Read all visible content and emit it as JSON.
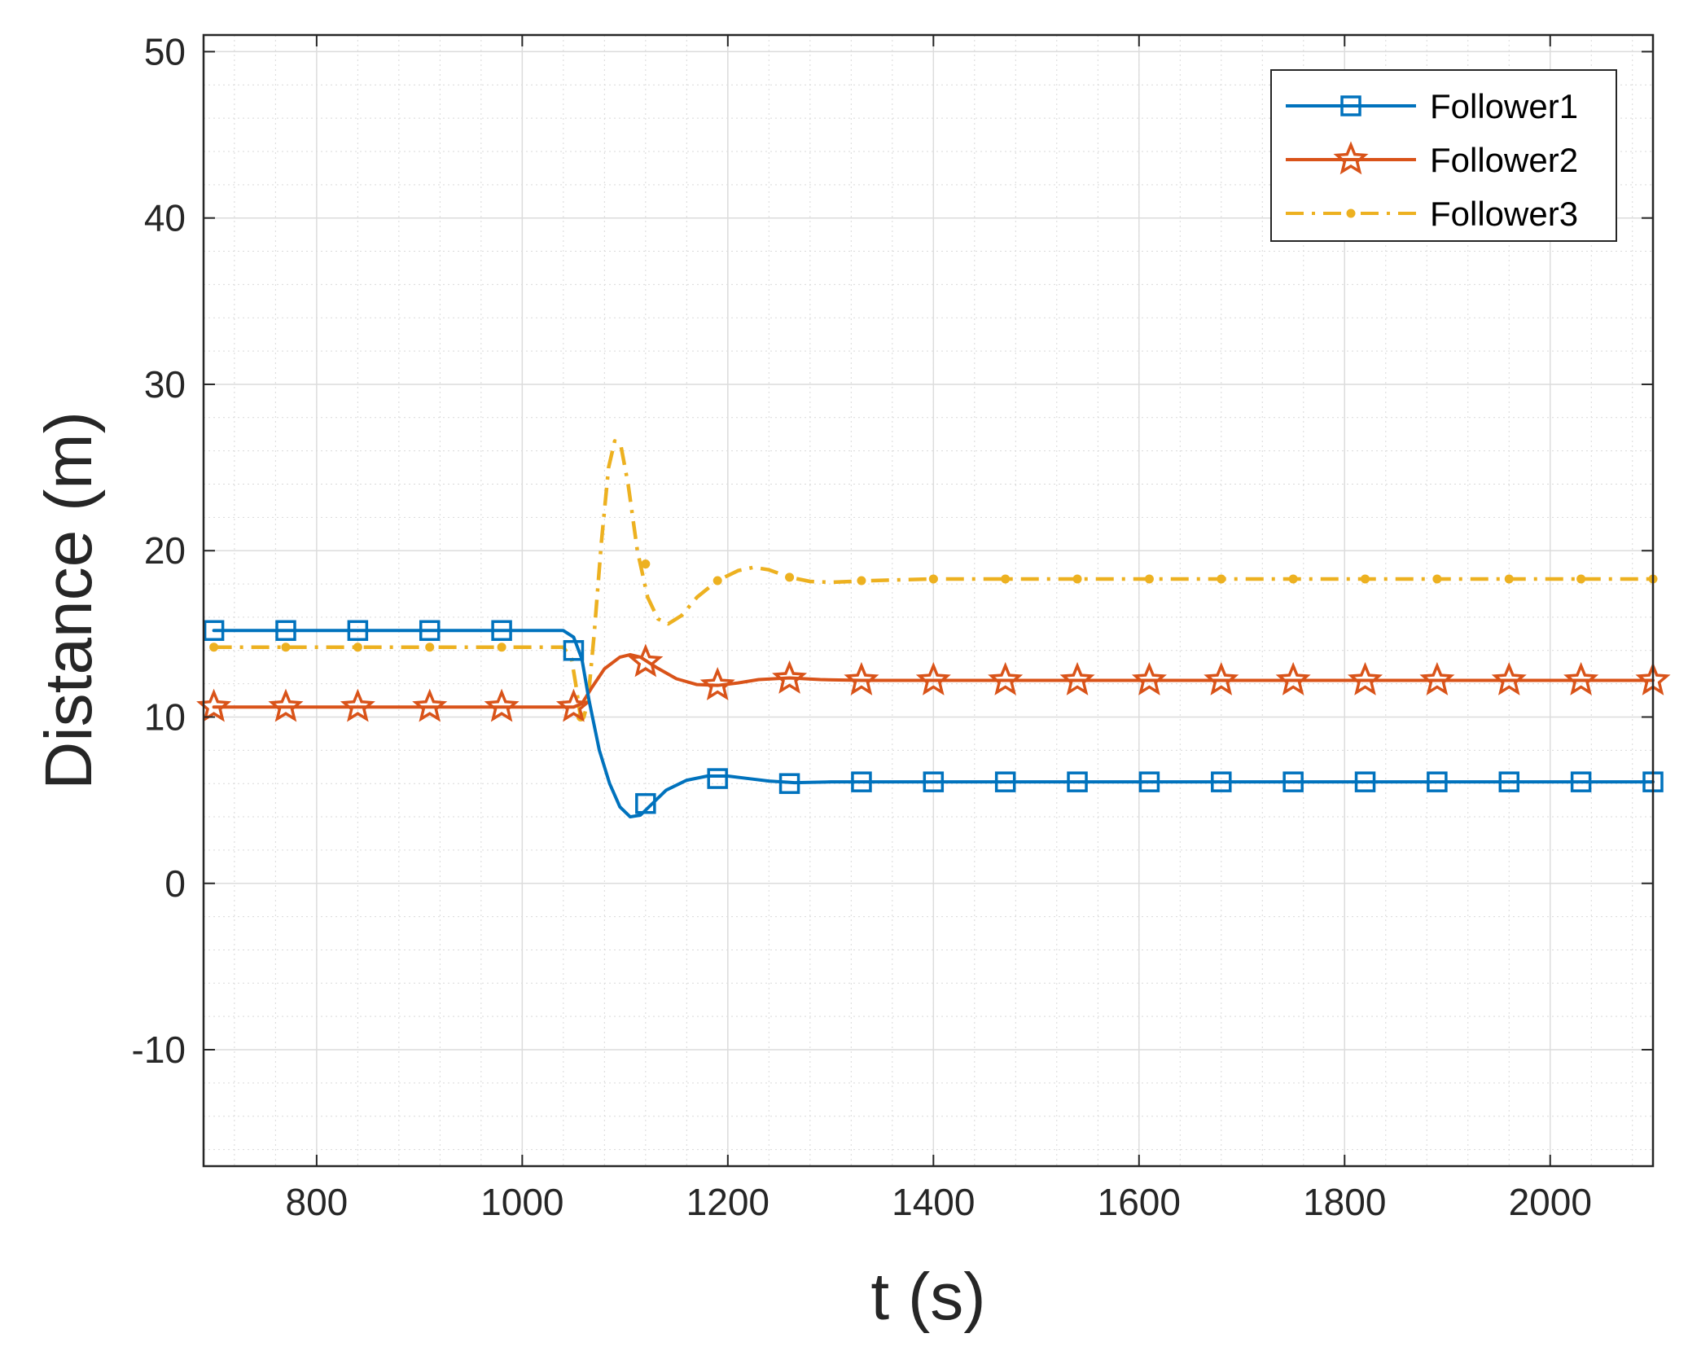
{
  "chart_data": {
    "type": "line",
    "title": "",
    "xlabel": "t (s)",
    "ylabel": "Distance (m)",
    "xlim": [
      690,
      2100
    ],
    "ylim": [
      -17,
      51
    ],
    "xticks": [
      800,
      1000,
      1200,
      1400,
      1600,
      1800,
      2000
    ],
    "yticks": [
      -10,
      0,
      10,
      20,
      30,
      40,
      50
    ],
    "grid": true,
    "minor_grid": true,
    "legend_position": "top-right",
    "series": [
      {
        "name": "Follower1",
        "color": "#0072BD",
        "line_style": "solid",
        "marker": "square",
        "points": [
          [
            700,
            15.2
          ],
          [
            1040,
            15.2
          ],
          [
            1050,
            14.8
          ],
          [
            1058,
            13.5
          ],
          [
            1065,
            11.0
          ],
          [
            1075,
            8.0
          ],
          [
            1085,
            6.0
          ],
          [
            1095,
            4.6
          ],
          [
            1105,
            4.0
          ],
          [
            1115,
            4.1
          ],
          [
            1125,
            4.7
          ],
          [
            1140,
            5.6
          ],
          [
            1160,
            6.2
          ],
          [
            1180,
            6.45
          ],
          [
            1200,
            6.45
          ],
          [
            1220,
            6.3
          ],
          [
            1240,
            6.15
          ],
          [
            1265,
            6.05
          ],
          [
            1300,
            6.1
          ],
          [
            2100,
            6.1
          ]
        ],
        "marker_x": [
          700,
          770,
          840,
          910,
          980,
          1050,
          1120,
          1190,
          1260,
          1330,
          1400,
          1470,
          1540,
          1610,
          1680,
          1750,
          1820,
          1890,
          1960,
          2030,
          2100
        ],
        "marker_y": [
          15.2,
          15.2,
          15.2,
          15.2,
          15.2,
          14.0,
          4.8,
          6.3,
          6.0,
          6.1,
          6.1,
          6.1,
          6.1,
          6.1,
          6.1,
          6.1,
          6.1,
          6.1,
          6.1,
          6.1,
          6.1
        ]
      },
      {
        "name": "Follower2",
        "color": "#D95319",
        "line_style": "solid",
        "marker": "pentagram",
        "points": [
          [
            700,
            10.6
          ],
          [
            1040,
            10.6
          ],
          [
            1050,
            10.6
          ],
          [
            1058,
            10.8
          ],
          [
            1068,
            11.8
          ],
          [
            1080,
            12.9
          ],
          [
            1095,
            13.6
          ],
          [
            1105,
            13.75
          ],
          [
            1115,
            13.6
          ],
          [
            1130,
            13.0
          ],
          [
            1150,
            12.3
          ],
          [
            1170,
            11.95
          ],
          [
            1190,
            11.9
          ],
          [
            1210,
            12.05
          ],
          [
            1230,
            12.25
          ],
          [
            1260,
            12.35
          ],
          [
            1290,
            12.25
          ],
          [
            1330,
            12.2
          ],
          [
            2100,
            12.2
          ]
        ],
        "marker_x": [
          700,
          770,
          840,
          910,
          980,
          1050,
          1120,
          1190,
          1260,
          1330,
          1400,
          1470,
          1540,
          1610,
          1680,
          1750,
          1820,
          1890,
          1960,
          2030,
          2100
        ],
        "marker_y": [
          10.6,
          10.6,
          10.6,
          10.6,
          10.6,
          10.6,
          13.3,
          11.9,
          12.3,
          12.2,
          12.2,
          12.2,
          12.2,
          12.2,
          12.2,
          12.2,
          12.2,
          12.2,
          12.2,
          12.2,
          12.2
        ]
      },
      {
        "name": "Follower3",
        "color": "#EDB120",
        "line_style": "dashdot",
        "marker": "point",
        "points": [
          [
            700,
            14.2
          ],
          [
            1040,
            14.2
          ],
          [
            1048,
            13.5
          ],
          [
            1052,
            12.0
          ],
          [
            1056,
            10.3
          ],
          [
            1060,
            10.0
          ],
          [
            1064,
            11.0
          ],
          [
            1070,
            15.0
          ],
          [
            1077,
            20.5
          ],
          [
            1084,
            25.0
          ],
          [
            1090,
            26.6
          ],
          [
            1096,
            26.3
          ],
          [
            1103,
            24.0
          ],
          [
            1112,
            20.0
          ],
          [
            1122,
            17.2
          ],
          [
            1132,
            15.9
          ],
          [
            1142,
            15.6
          ],
          [
            1155,
            16.1
          ],
          [
            1170,
            17.2
          ],
          [
            1190,
            18.2
          ],
          [
            1210,
            18.8
          ],
          [
            1225,
            19.0
          ],
          [
            1240,
            18.85
          ],
          [
            1260,
            18.4
          ],
          [
            1280,
            18.15
          ],
          [
            1300,
            18.1
          ],
          [
            1340,
            18.2
          ],
          [
            1400,
            18.3
          ],
          [
            2100,
            18.3
          ]
        ],
        "marker_x": [
          700,
          770,
          840,
          910,
          980,
          1057,
          1120,
          1190,
          1260,
          1330,
          1400,
          1470,
          1540,
          1610,
          1680,
          1750,
          1820,
          1890,
          1960,
          2030,
          2100
        ],
        "marker_y": [
          14.2,
          14.2,
          14.2,
          14.2,
          14.2,
          10.0,
          19.2,
          18.2,
          18.4,
          18.2,
          18.3,
          18.3,
          18.3,
          18.3,
          18.3,
          18.3,
          18.3,
          18.3,
          18.3,
          18.3,
          18.3
        ]
      }
    ]
  }
}
